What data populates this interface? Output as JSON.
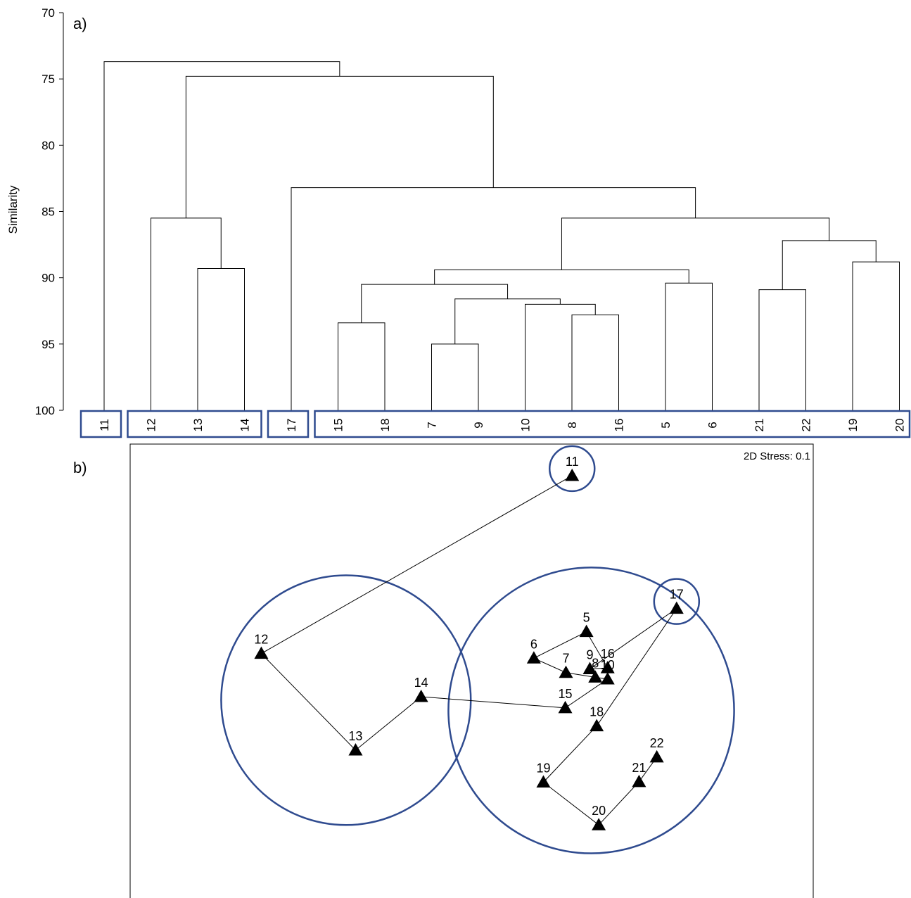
{
  "panel_a": {
    "label": "a)",
    "chart_data": {
      "type": "dendrogram",
      "title": "",
      "ylabel": "Similarity",
      "ylim": [
        70,
        100
      ],
      "yticks": [
        "70",
        "75",
        "80",
        "85",
        "90",
        "95",
        "100"
      ],
      "leaves": [
        "11",
        "12",
        "13",
        "14",
        "17",
        "15",
        "18",
        "7",
        "9",
        "10",
        "8",
        "16",
        "5",
        "6",
        "21",
        "22",
        "19",
        "20"
      ],
      "leaf_groups": [
        [
          "11"
        ],
        [
          "12",
          "13",
          "14"
        ],
        [
          "17"
        ],
        [
          "15",
          "18",
          "7",
          "9",
          "10",
          "8",
          "16",
          "5",
          "6",
          "21",
          "22",
          "19",
          "20"
        ]
      ],
      "merges": [
        {
          "left": "7",
          "right": "9",
          "similarity": 95.0
        },
        {
          "left": "15",
          "right": "18",
          "similarity": 93.4
        },
        {
          "left": "8",
          "right": "16",
          "similarity": 92.8
        },
        {
          "left": "10",
          "right": "(8,16)",
          "similarity": 92.0
        },
        {
          "left": "(7,9)",
          "right": "(10,8,16)",
          "similarity": 91.6
        },
        {
          "left": "21",
          "right": "22",
          "similarity": 90.9
        },
        {
          "left": "(15,18)",
          "right": "(7,9,10,8,16)",
          "similarity": 90.5
        },
        {
          "left": "5",
          "right": "6",
          "similarity": 90.4
        },
        {
          "left": "(15,18,7,9,10,8,16)",
          "right": "(5,6)",
          "similarity": 89.4
        },
        {
          "left": "13",
          "right": "14",
          "similarity": 89.3
        },
        {
          "left": "19",
          "right": "20",
          "similarity": 88.8
        },
        {
          "left": "(21,22)",
          "right": "(19,20)",
          "similarity": 87.2
        },
        {
          "left": "(15,...,6)",
          "right": "(21,22,19,20)",
          "similarity": 85.5
        },
        {
          "left": "12",
          "right": "(13,14)",
          "similarity": 85.5
        },
        {
          "left": "17",
          "right": "(15,...,20)",
          "similarity": 83.2
        },
        {
          "left": "(12,13,14)",
          "right": "(17,...,20)",
          "similarity": 74.8
        },
        {
          "left": "11",
          "right": "(12,...,20)",
          "similarity": 73.7
        }
      ]
    }
  },
  "panel_b": {
    "label": "b)",
    "stress": "2D Stress: 0.1",
    "chart_data": {
      "type": "scatter",
      "title": "",
      "xlabel": "",
      "ylabel": "",
      "xlim": [
        0,
        100
      ],
      "ylim": [
        0,
        100
      ],
      "points": [
        {
          "label": "5",
          "x": 66.8,
          "y": 59.6
        },
        {
          "label": "6",
          "x": 59.1,
          "y": 53.9
        },
        {
          "label": "7",
          "x": 63.8,
          "y": 50.8
        },
        {
          "label": "8",
          "x": 68.1,
          "y": 49.8
        },
        {
          "label": "9",
          "x": 67.3,
          "y": 51.6
        },
        {
          "label": "10",
          "x": 69.9,
          "y": 49.4
        },
        {
          "label": "11",
          "x": 64.7,
          "y": 93.2
        },
        {
          "label": "12",
          "x": 19.2,
          "y": 54.9
        },
        {
          "label": "13",
          "x": 33.0,
          "y": 34.1
        },
        {
          "label": "14",
          "x": 42.6,
          "y": 45.6
        },
        {
          "label": "15",
          "x": 63.7,
          "y": 43.2
        },
        {
          "label": "16",
          "x": 69.9,
          "y": 51.8
        },
        {
          "label": "17",
          "x": 80.0,
          "y": 64.6
        },
        {
          "label": "18",
          "x": 68.3,
          "y": 39.3
        },
        {
          "label": "19",
          "x": 60.5,
          "y": 27.2
        },
        {
          "label": "20",
          "x": 68.6,
          "y": 18.0
        },
        {
          "label": "21",
          "x": 74.5,
          "y": 27.3
        },
        {
          "label": "22",
          "x": 77.1,
          "y": 32.6
        }
      ],
      "path": [
        "11",
        "12",
        "13",
        "14",
        "15",
        "10",
        "8",
        "7",
        "6",
        "5",
        "16",
        "9",
        "17",
        "18",
        "19",
        "20",
        "21",
        "22"
      ],
      "groups": [
        [
          "11"
        ],
        [
          "12",
          "13",
          "14"
        ],
        [
          "17"
        ],
        [
          "5",
          "6",
          "7",
          "8",
          "9",
          "10",
          "15",
          "16",
          "18",
          "19",
          "20",
          "21",
          "22"
        ]
      ]
    }
  },
  "colors": {
    "group_outline": "#2f4b8f",
    "line": "#000000",
    "marker": "#000000"
  }
}
